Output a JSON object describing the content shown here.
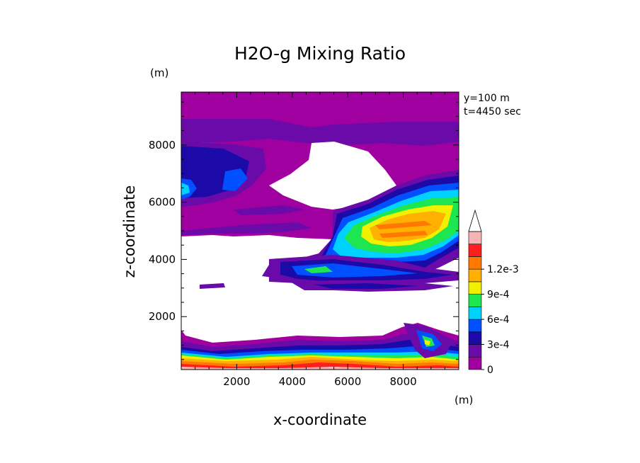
{
  "chart_data": {
    "type": "heatmap",
    "title": "H2O-g Mixing Ratio",
    "xlabel": "x-coordinate",
    "ylabel": "z-coordinate",
    "x_unit": "(m)",
    "y_unit": "(m)",
    "annotations": [
      "y=100 m",
      "t=4450 sec"
    ],
    "xlim": [
      0,
      10000
    ],
    "ylim": [
      150,
      9850
    ],
    "x_ticks": [
      2000,
      4000,
      6000,
      8000
    ],
    "y_ticks": [
      2000,
      4000,
      6000,
      8000
    ],
    "colorbar": {
      "levels": [
        0,
        0.00015,
        0.0003,
        0.00045,
        0.0006,
        0.00075,
        0.0009,
        0.00105,
        0.0012,
        0.00135
      ],
      "tick_labels": [
        "0",
        "3e-4",
        "6e-4",
        "9e-4",
        "1.2e-3"
      ],
      "tick_values": [
        0,
        0.0003,
        0.0006,
        0.0009,
        0.0012
      ],
      "colors": [
        "#a000a0",
        "#6a0aa8",
        "#1c0aa8",
        "#0050ff",
        "#00d2ff",
        "#1ee650",
        "#f0f000",
        "#ffb000",
        "#ff7800",
        "#ff1e1e",
        "#f8b4b4"
      ],
      "extend": "max"
    },
    "field_features": [
      {
        "region": "upper layer, z>8500 m",
        "value": 5e-05
      },
      {
        "region": "dry slot, x 5000-7500 m, z 5800-8100 m",
        "value": 0
      },
      {
        "region": "moist plume, x 6500-9800 m, z 3300-6200 m",
        "value": 0.0008
      },
      {
        "region": "boundary layer, z<1200 m",
        "value": 0.001
      },
      {
        "region": "mid-level dry band, z 1200-4000 m",
        "value": 0
      }
    ]
  }
}
